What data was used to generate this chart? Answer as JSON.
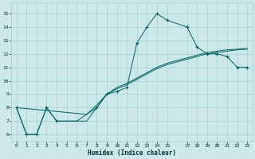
{
  "title": "",
  "xlabel": "Humidex (Indice chaleur)",
  "xlim": [
    -0.5,
    23.5
  ],
  "ylim": [
    5.5,
    15.8
  ],
  "xticks": [
    0,
    1,
    2,
    3,
    4,
    5,
    6,
    7,
    8,
    9,
    10,
    11,
    12,
    13,
    14,
    15,
    17,
    18,
    19,
    20,
    21,
    22,
    23
  ],
  "yticks": [
    6,
    7,
    8,
    9,
    10,
    11,
    12,
    13,
    14,
    15
  ],
  "bg_color": "#cce8e8",
  "grid_color": "#99cccc",
  "line_color": "#006060",
  "line1_x": [
    0,
    1,
    2,
    3,
    4,
    5,
    6,
    7,
    8,
    9,
    10,
    11,
    12,
    13,
    14,
    15,
    17,
    18,
    19,
    20,
    21,
    22,
    23
  ],
  "line1_y": [
    8,
    6,
    6,
    8,
    7,
    7,
    7,
    7,
    8,
    9,
    9.2,
    9.5,
    12.8,
    14.0,
    15.0,
    14.5,
    14.0,
    12.5,
    12.0,
    12.0,
    11.8,
    11.0,
    11.0
  ],
  "line2_x": [
    0,
    1,
    2,
    3,
    4,
    5,
    6,
    7,
    8,
    9,
    10,
    11,
    12,
    13,
    14,
    15,
    17,
    18,
    19,
    20,
    21,
    22,
    23
  ],
  "line2_y": [
    8,
    6,
    6,
    8,
    7,
    7,
    7,
    7.5,
    8.0,
    9.0,
    9.5,
    9.8,
    10.2,
    10.6,
    11.0,
    11.3,
    11.7,
    11.9,
    12.1,
    12.2,
    12.3,
    12.35,
    12.4
  ],
  "line3_x": [
    0,
    7,
    8,
    9,
    10,
    11,
    12,
    13,
    14,
    15,
    17,
    18,
    19,
    20,
    21,
    22,
    23
  ],
  "line3_y": [
    8,
    7.5,
    8.2,
    9.0,
    9.4,
    9.7,
    10.1,
    10.5,
    10.9,
    11.2,
    11.6,
    11.8,
    12.0,
    12.1,
    12.2,
    12.3,
    12.35
  ],
  "mk1_x": [
    0,
    1,
    2,
    3,
    4,
    8,
    9,
    10,
    11,
    12,
    13,
    14,
    15,
    17,
    18,
    19,
    20,
    21,
    22,
    23
  ],
  "mk1_y": [
    8,
    6,
    6,
    8,
    7,
    8,
    9,
    9.2,
    9.5,
    12.8,
    14.0,
    15.0,
    14.5,
    14.0,
    12.5,
    12.0,
    12.0,
    11.8,
    11.0,
    11.0
  ],
  "figsize": [
    3.2,
    2.0
  ],
  "dpi": 100
}
